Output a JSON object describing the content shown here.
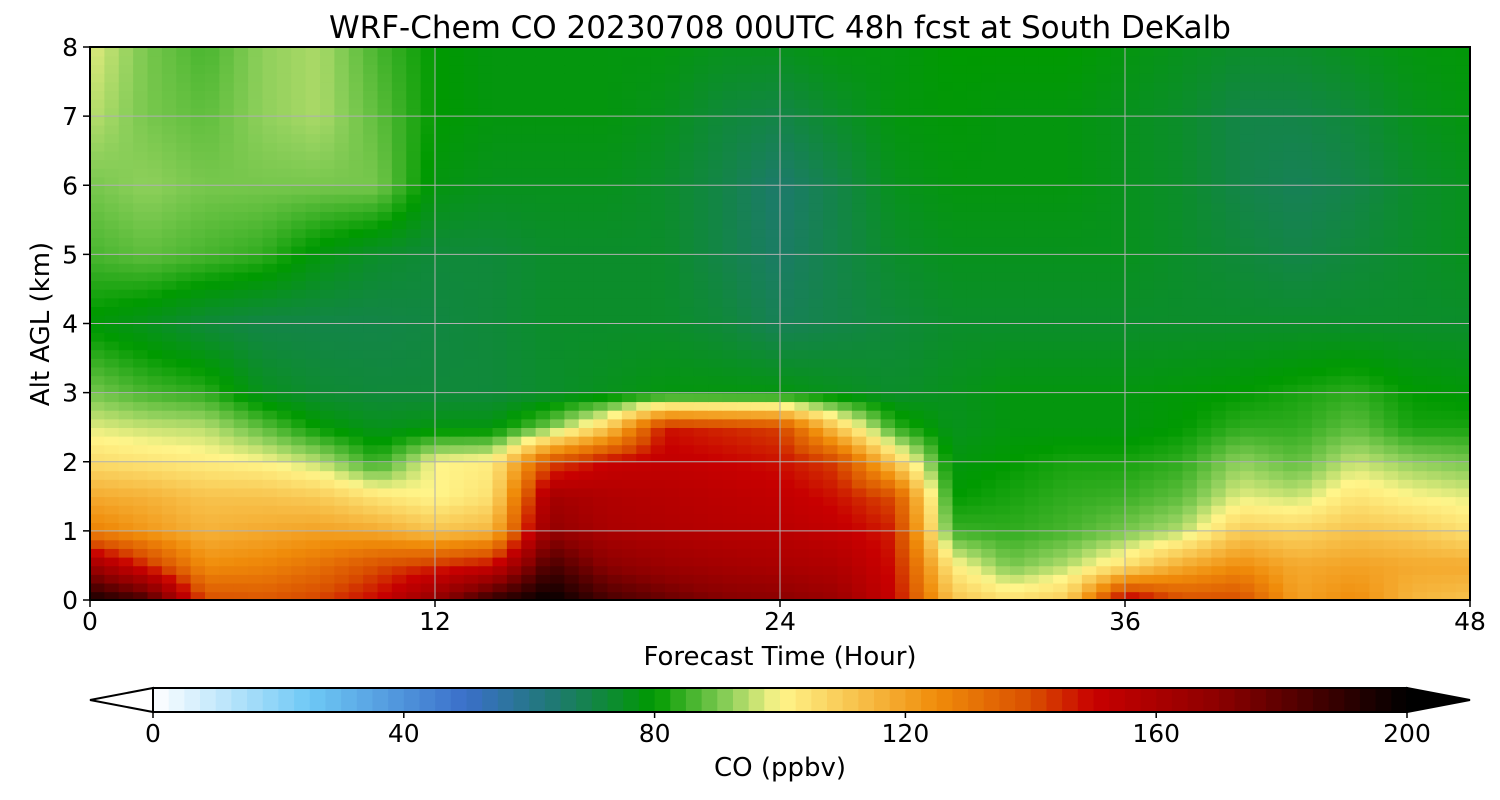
{
  "chart_data": {
    "type": "heatmap",
    "title": "WRF-Chem CO  20230708 00UTC 48h fcst at South DeKalb",
    "xlabel": "Forecast Time (Hour)",
    "ylabel": "Alt AGL (km)",
    "xlim": [
      0,
      48
    ],
    "ylim": [
      0,
      8
    ],
    "xticks": [
      0,
      12,
      24,
      36,
      48
    ],
    "yticks": [
      0,
      1,
      2,
      3,
      4,
      5,
      6,
      7,
      8
    ],
    "grid": true,
    "colorbar": {
      "label": "CO  (ppbv)",
      "orientation": "horizontal",
      "placement": "bottom",
      "vmin": 0,
      "vmax": 200,
      "extend": "both",
      "ticks": [
        0,
        40,
        80,
        120,
        160,
        200
      ],
      "color_stops": [
        {
          "value": 0,
          "color": "#ffffff"
        },
        {
          "value": 25,
          "color": "#6ec8f5"
        },
        {
          "value": 50,
          "color": "#3a6fc9"
        },
        {
          "value": 65,
          "color": "#1d7a6c"
        },
        {
          "value": 80,
          "color": "#009a00"
        },
        {
          "value": 92,
          "color": "#8fd05c"
        },
        {
          "value": 100,
          "color": "#fff58a"
        },
        {
          "value": 125,
          "color": "#f08c0a"
        },
        {
          "value": 140,
          "color": "#d94f00"
        },
        {
          "value": 150,
          "color": "#c80000"
        },
        {
          "value": 170,
          "color": "#8c0000"
        },
        {
          "value": 200,
          "color": "#000000"
        }
      ]
    },
    "x": [
      0,
      2,
      4,
      6,
      8,
      10,
      12,
      14,
      16,
      18,
      20,
      22,
      24,
      26,
      28,
      30,
      32,
      34,
      36,
      38,
      40,
      42,
      44,
      46,
      48
    ],
    "y": [
      0,
      0.5,
      1,
      1.5,
      2,
      2.5,
      3,
      4,
      5,
      6,
      7,
      8
    ],
    "z": [
      [
        196,
        185,
        140,
        138,
        142,
        150,
        168,
        190,
        200,
        185,
        178,
        172,
        170,
        165,
        150,
        112,
        105,
        110,
        155,
        140,
        140,
        120,
        125,
        115,
        112
      ],
      [
        165,
        145,
        125,
        127,
        132,
        140,
        145,
        150,
        185,
        170,
        165,
        162,
        160,
        158,
        148,
        102,
        90,
        95,
        105,
        118,
        125,
        118,
        120,
        118,
        118
      ],
      [
        128,
        122,
        116,
        118,
        120,
        118,
        112,
        115,
        168,
        160,
        158,
        156,
        155,
        152,
        146,
        85,
        84,
        86,
        90,
        95,
        110,
        108,
        112,
        110,
        105
      ],
      [
        118,
        116,
        112,
        112,
        110,
        104,
        100,
        105,
        162,
        158,
        156,
        154,
        152,
        148,
        140,
        80,
        82,
        84,
        85,
        88,
        98,
        96,
        104,
        100,
        98
      ],
      [
        106,
        104,
        102,
        100,
        95,
        84,
        100,
        102,
        140,
        150,
        152,
        150,
        148,
        142,
        110,
        78,
        80,
        82,
        82,
        84,
        92,
        88,
        96,
        92,
        90
      ],
      [
        98,
        96,
        95,
        88,
        80,
        76,
        78,
        78,
        90,
        110,
        148,
        145,
        142,
        110,
        84,
        76,
        78,
        78,
        78,
        80,
        84,
        84,
        88,
        82,
        82
      ],
      [
        90,
        86,
        84,
        76,
        73,
        72,
        72,
        72,
        74,
        76,
        78,
        78,
        78,
        76,
        74,
        76,
        78,
        78,
        78,
        79,
        80,
        82,
        84,
        80,
        79
      ],
      [
        79,
        76,
        72,
        70,
        70,
        70,
        71,
        72,
        74,
        74,
        74,
        72,
        68,
        70,
        72,
        74,
        74,
        74,
        74,
        74,
        74,
        74,
        74,
        74,
        74
      ],
      [
        86,
        88,
        86,
        84,
        78,
        74,
        72,
        72,
        74,
        74,
        74,
        70,
        66,
        70,
        74,
        76,
        76,
        76,
        76,
        74,
        72,
        70,
        72,
        74,
        76
      ],
      [
        90,
        92,
        90,
        90,
        90,
        90,
        78,
        76,
        76,
        76,
        74,
        70,
        65,
        70,
        76,
        78,
        78,
        78,
        76,
        74,
        70,
        68,
        70,
        74,
        76
      ],
      [
        95,
        90,
        88,
        92,
        94,
        88,
        80,
        78,
        78,
        78,
        76,
        72,
        70,
        74,
        78,
        79,
        78,
        78,
        76,
        74,
        70,
        70,
        72,
        76,
        78
      ],
      [
        98,
        90,
        86,
        92,
        94,
        86,
        80,
        78,
        78,
        78,
        78,
        76,
        76,
        78,
        78,
        80,
        80,
        80,
        78,
        76,
        74,
        74,
        76,
        78,
        79
      ]
    ]
  }
}
